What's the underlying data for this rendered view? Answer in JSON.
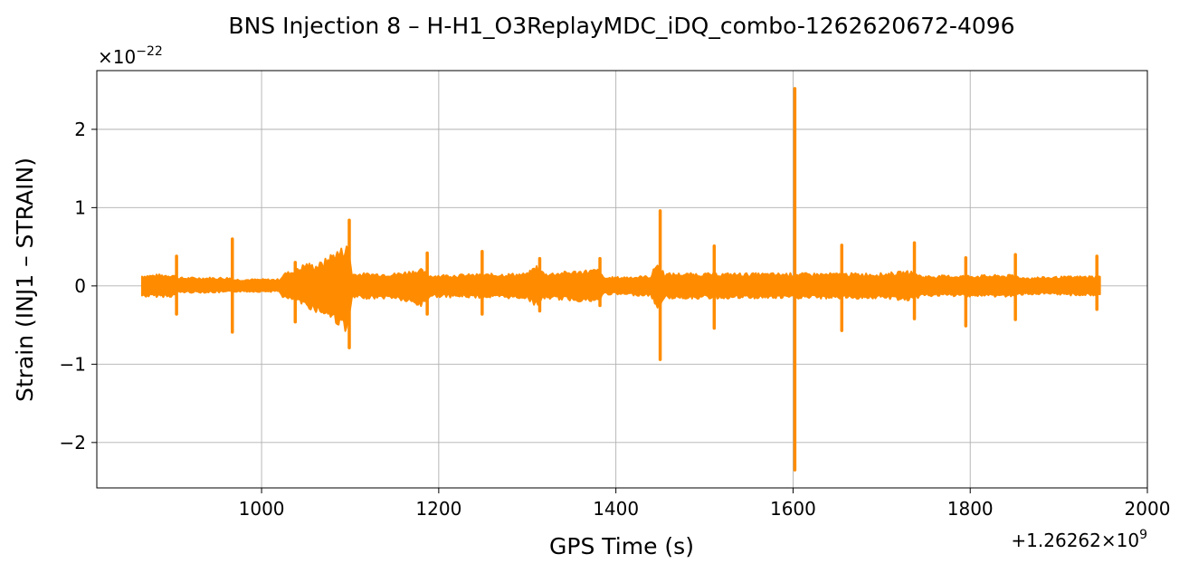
{
  "chart_data": {
    "type": "line",
    "title": "BNS Injection 8 – H-H1_O3ReplayMDC_iDQ_combo-1262620672-4096",
    "xlabel": "GPS Time (s)",
    "ylabel": "Strain (INJ1 – STRAIN)",
    "x_offset_label": "+1.26262×10^9",
    "x_offset_base": "+1.26262×10",
    "x_offset_exp": "9",
    "y_scale_base": "×10",
    "y_scale_exp": "−22",
    "xlim": [
      814,
      2000
    ],
    "ylim": [
      -2.58,
      2.75
    ],
    "xticks": [
      1000,
      1200,
      1400,
      1600,
      1800,
      2000
    ],
    "xtick_labels": [
      "1000",
      "1200",
      "1400",
      "1600",
      "1800",
      "2000"
    ],
    "yticks": [
      -2,
      -1,
      0,
      1,
      2
    ],
    "ytick_labels": [
      "−2",
      "−1",
      "0",
      "1",
      "2"
    ],
    "grid": true,
    "color": "#ff8c00",
    "envelope": {
      "x": [
        865,
        900,
        906,
        965,
        970,
        1020,
        1025,
        1040,
        1050,
        1060,
        1070,
        1080,
        1090,
        1098,
        1102,
        1150,
        1180,
        1190,
        1300,
        1310,
        1320,
        1380,
        1386,
        1440,
        1446,
        1455,
        1600,
        1700,
        1735,
        1745,
        1850,
        1860,
        1947
      ],
      "upper": [
        0.13,
        0.14,
        0.1,
        0.1,
        0.08,
        0.08,
        0.15,
        0.2,
        0.28,
        0.25,
        0.3,
        0.4,
        0.45,
        0.5,
        0.15,
        0.15,
        0.2,
        0.13,
        0.15,
        0.25,
        0.15,
        0.2,
        0.1,
        0.12,
        0.3,
        0.15,
        0.15,
        0.15,
        0.18,
        0.12,
        0.13,
        0.1,
        0.12
      ],
      "lower": [
        -0.13,
        -0.13,
        -0.08,
        -0.08,
        -0.07,
        -0.07,
        -0.15,
        -0.2,
        -0.25,
        -0.3,
        -0.35,
        -0.4,
        -0.5,
        -0.55,
        -0.15,
        -0.15,
        -0.25,
        -0.13,
        -0.15,
        -0.25,
        -0.15,
        -0.2,
        -0.1,
        -0.12,
        -0.3,
        -0.15,
        -0.15,
        -0.15,
        -0.18,
        -0.12,
        -0.13,
        -0.1,
        -0.12
      ]
    },
    "spikes": [
      {
        "x": 904,
        "max": 0.38,
        "min": -0.36
      },
      {
        "x": 967,
        "max": 0.6,
        "min": -0.59
      },
      {
        "x": 1038,
        "max": 0.3,
        "min": -0.46
      },
      {
        "x": 1099,
        "max": 0.84,
        "min": -0.79
      },
      {
        "x": 1187,
        "max": 0.42,
        "min": -0.36
      },
      {
        "x": 1249,
        "max": 0.44,
        "min": -0.36
      },
      {
        "x": 1314,
        "max": 0.35,
        "min": -0.32
      },
      {
        "x": 1382,
        "max": 0.35,
        "min": -0.25
      },
      {
        "x": 1450,
        "max": 0.96,
        "min": -0.94
      },
      {
        "x": 1511,
        "max": 0.51,
        "min": -0.54
      },
      {
        "x": 1602,
        "max": 2.52,
        "min": -2.35
      },
      {
        "x": 1655,
        "max": 0.52,
        "min": -0.57
      },
      {
        "x": 1737,
        "max": 0.55,
        "min": -0.42
      },
      {
        "x": 1795,
        "max": 0.36,
        "min": -0.51
      },
      {
        "x": 1851,
        "max": 0.4,
        "min": -0.43
      },
      {
        "x": 1943,
        "max": 0.38,
        "min": -0.3
      }
    ]
  }
}
